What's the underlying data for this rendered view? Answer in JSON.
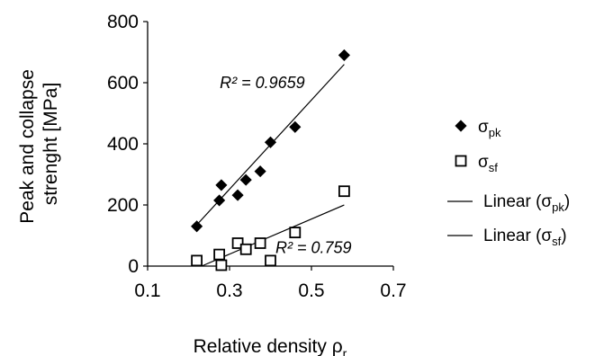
{
  "chart_data": {
    "type": "scatter",
    "xlabel": "Relative density ρ",
    "xlabel_sub": "r",
    "ylabel_lines": [
      "Peak  and collapse",
      "strenght [MPa]"
    ],
    "xlim": [
      0.1,
      0.7
    ],
    "ylim": [
      0,
      800
    ],
    "x_ticks": [
      "0.1",
      "0.3",
      "0.5",
      "0.7"
    ],
    "y_ticks": [
      "0",
      "200",
      "400",
      "600",
      "800"
    ],
    "grid": false,
    "legend_position": "right",
    "series": [
      {
        "name": "σpk",
        "symbol": "σ",
        "sub": "pk",
        "marker": "diamond-filled",
        "color": "#000000",
        "points": [
          {
            "x": 0.22,
            "y": 130
          },
          {
            "x": 0.275,
            "y": 215
          },
          {
            "x": 0.28,
            "y": 265
          },
          {
            "x": 0.32,
            "y": 232
          },
          {
            "x": 0.34,
            "y": 282
          },
          {
            "x": 0.375,
            "y": 310
          },
          {
            "x": 0.4,
            "y": 405
          },
          {
            "x": 0.46,
            "y": 455
          },
          {
            "x": 0.58,
            "y": 690
          }
        ],
        "trendline": {
          "x": [
            0.22,
            0.58
          ],
          "y": [
            135,
            660
          ]
        },
        "r2_label": "R² = 0.9659"
      },
      {
        "name": "σsf",
        "symbol": "σ",
        "sub": "sf",
        "marker": "square-open",
        "color": "#000000",
        "points": [
          {
            "x": 0.22,
            "y": 18
          },
          {
            "x": 0.275,
            "y": 38
          },
          {
            "x": 0.28,
            "y": 3
          },
          {
            "x": 0.32,
            "y": 75
          },
          {
            "x": 0.34,
            "y": 55
          },
          {
            "x": 0.375,
            "y": 75
          },
          {
            "x": 0.4,
            "y": 18
          },
          {
            "x": 0.46,
            "y": 110
          },
          {
            "x": 0.58,
            "y": 245
          }
        ],
        "trendline": {
          "x": [
            0.232,
            0.58
          ],
          "y": [
            0,
            200
          ]
        },
        "r2_label": "R² = 0.759"
      }
    ],
    "legend": [
      {
        "kind": "marker",
        "ref": 0,
        "text": "σ",
        "sub": "pk"
      },
      {
        "kind": "marker",
        "ref": 1,
        "text": "σ",
        "sub": "sf"
      },
      {
        "kind": "line",
        "text": "Linear (σ",
        "sub": "pk",
        "close": ")"
      },
      {
        "kind": "line",
        "text": "Linear (σ",
        "sub": "sf",
        "close": ")"
      }
    ]
  }
}
